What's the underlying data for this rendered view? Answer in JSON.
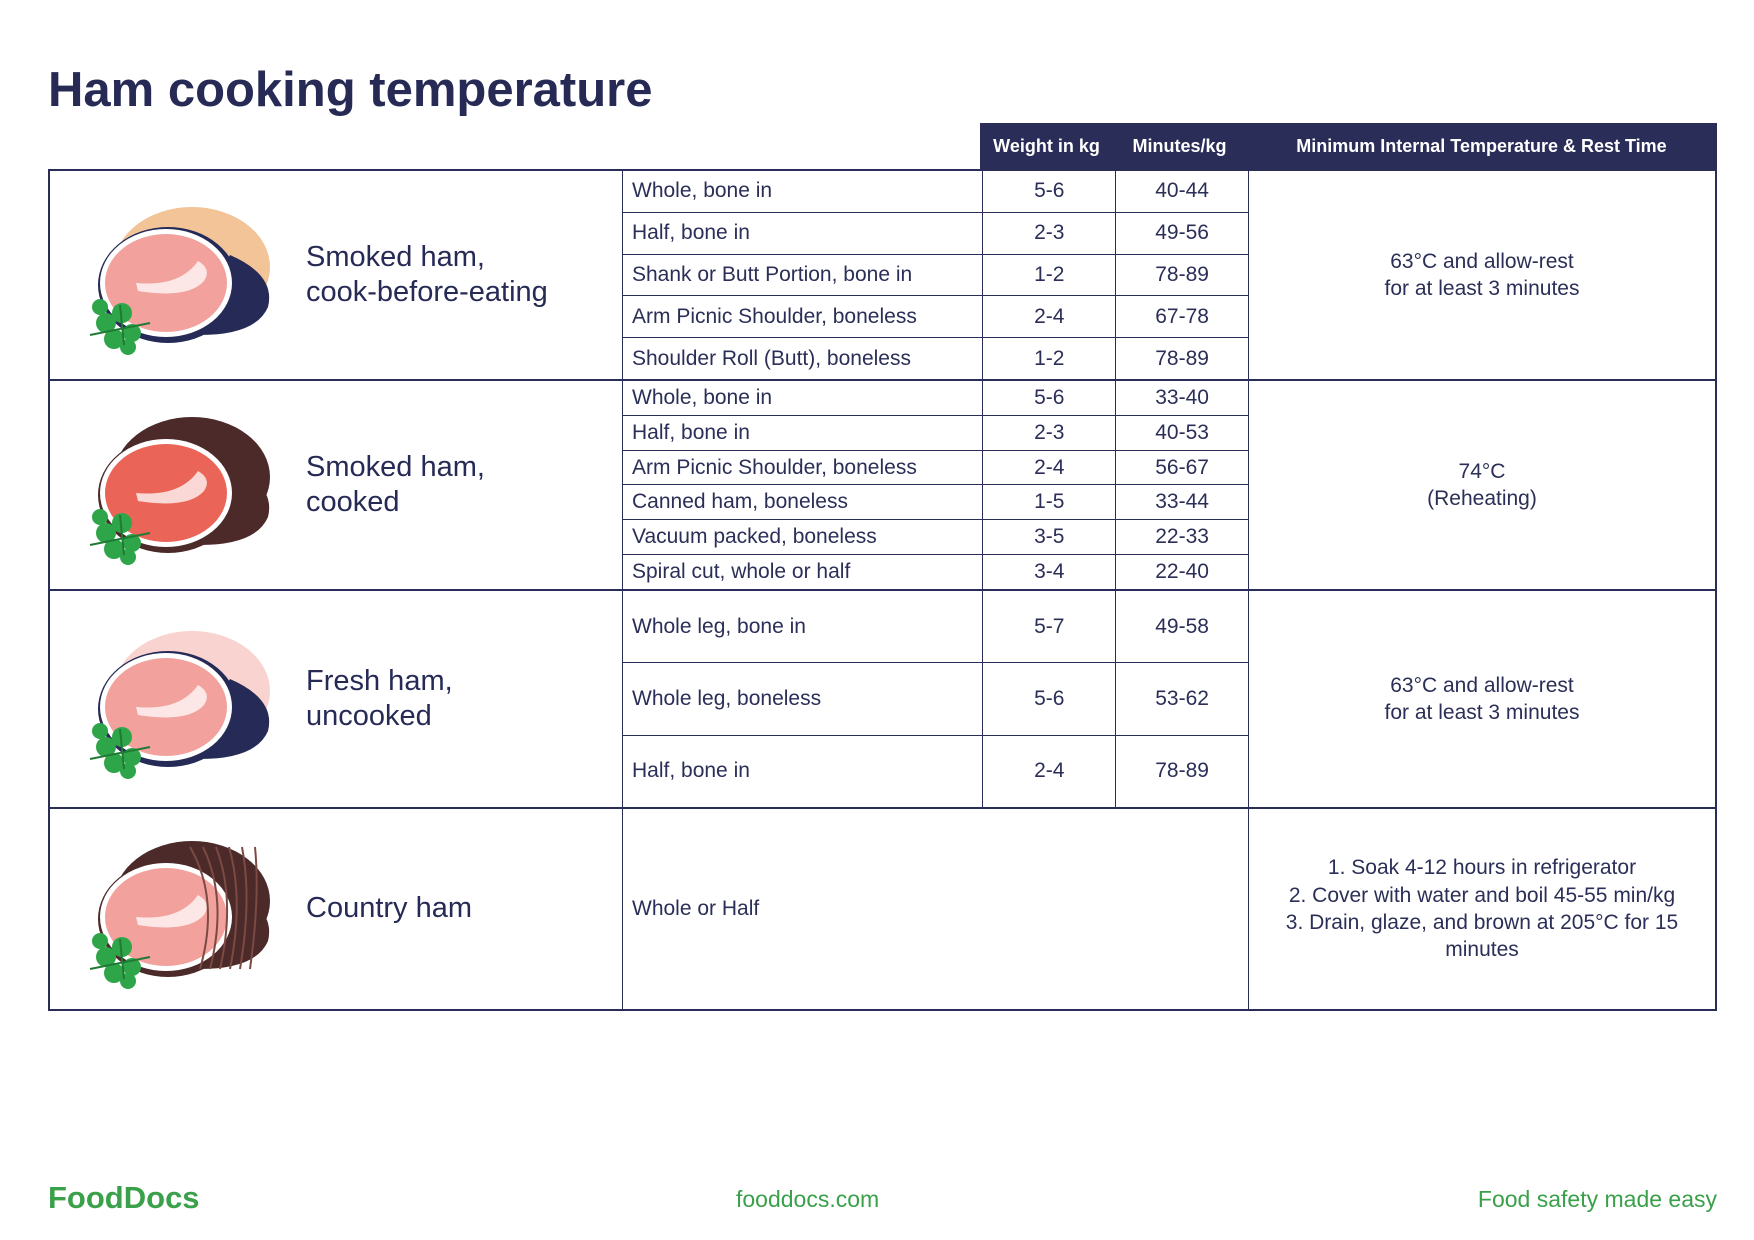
{
  "title": "Ham cooking temperature",
  "header": {
    "weight": "Weight in kg",
    "minutes": "Minutes/kg",
    "temp": "Minimum Internal Temperature & Rest Time"
  },
  "groups": [
    {
      "name": [
        "Smoked ham,",
        "cook-before-eating"
      ],
      "icon": "smoked-ham-icon",
      "colors": {
        "rind": "#f2c498",
        "meat": "#f2a19c",
        "shadow": "#252a57"
      },
      "rows": [
        {
          "cut": "Whole, bone in",
          "weight": "5-6",
          "minutes": "40-44"
        },
        {
          "cut": "Half, bone in",
          "weight": "2-3",
          "minutes": "49-56"
        },
        {
          "cut": "Shank or Butt Portion, bone in",
          "weight": "1-2",
          "minutes": "78-89"
        },
        {
          "cut": "Arm Picnic Shoulder, boneless",
          "weight": "2-4",
          "minutes": "67-78"
        },
        {
          "cut": "Shoulder Roll (Butt), boneless",
          "weight": "1-2",
          "minutes": "78-89"
        }
      ],
      "temp": [
        "63°C and allow-rest",
        "for at least 3 minutes"
      ]
    },
    {
      "name": [
        "Smoked ham,",
        "cooked"
      ],
      "icon": "cooked-ham-icon",
      "colors": {
        "rind": "#4b2a29",
        "meat": "#ea6558",
        "shadow": "#4b2a29"
      },
      "rows": [
        {
          "cut": "Whole, bone in",
          "weight": "5-6",
          "minutes": "33-40"
        },
        {
          "cut": "Half, bone in",
          "weight": "2-3",
          "minutes": "40-53"
        },
        {
          "cut": "Arm Picnic Shoulder, boneless",
          "weight": "2-4",
          "minutes": "56-67"
        },
        {
          "cut": "Canned ham, boneless",
          "weight": "1-5",
          "minutes": "33-44"
        },
        {
          "cut": "Vacuum packed, boneless",
          "weight": "3-5",
          "minutes": "22-33"
        },
        {
          "cut": "Spiral cut, whole or half",
          "weight": "3-4",
          "minutes": "22-40"
        }
      ],
      "temp": [
        "74°C",
        "(Reheating)"
      ]
    },
    {
      "name": [
        "Fresh ham,",
        "uncooked"
      ],
      "icon": "fresh-ham-icon",
      "colors": {
        "rind": "#f9d3cf",
        "meat": "#f2a19c",
        "shadow": "#252a57"
      },
      "rows": [
        {
          "cut": "Whole leg, bone in",
          "weight": "5-7",
          "minutes": "49-58"
        },
        {
          "cut": "Whole leg, boneless",
          "weight": "5-6",
          "minutes": "53-62"
        },
        {
          "cut": "Half, bone in",
          "weight": "2-4",
          "minutes": "78-89"
        }
      ],
      "temp": [
        "63°C and allow-rest",
        "for at least 3 minutes"
      ]
    },
    {
      "name": [
        "Country ham"
      ],
      "icon": "country-ham-icon",
      "colors": {
        "rind": "#4b2a29",
        "meat": "#f2a19c",
        "shadow": "#4b2a29"
      },
      "rows": [
        {
          "cut": "Whole or Half"
        }
      ],
      "temp": [
        "1. Soak 4-12 hours in refrigerator",
        "2. Cover with water and boil 45-55 min/kg",
        "3. Drain, glaze, and brown at 205°C for 15",
        "minutes"
      ]
    }
  ],
  "footer": {
    "logo": "FoodDocs",
    "url": "fooddocs.com",
    "tagline": "Food safety made easy"
  }
}
